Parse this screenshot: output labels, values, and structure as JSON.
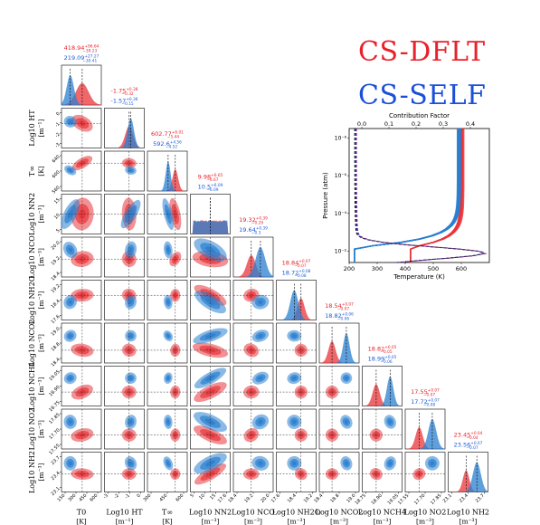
{
  "legend": {
    "red_label": "CS-DFLT",
    "blue_label": "CS-SELF"
  },
  "colors": {
    "red": "#e8343a",
    "blue": "#2a7fd0",
    "red_text": "#e8212a",
    "blue_text": "#1a5ad8"
  },
  "chart_data": [
    {
      "type": "corner",
      "parameters": [
        {
          "label": "T0",
          "unit": "[K]",
          "ticks": [
            "150",
            "300",
            "450",
            "600"
          ],
          "red": {
            "median": "418.94",
            "plus": "+96.64",
            "minus": "−39.23"
          },
          "blue": {
            "median": "219.09",
            "plus": "+27.27",
            "minus": "−30.41"
          }
        },
        {
          "label": "Log10 HT",
          "unit": "[m⁻¹]",
          "ticks": [
            "-3",
            "-2",
            "-1",
            "0"
          ],
          "red": {
            "median": "-1.75",
            "plus": "+0.38",
            "minus": "−0.32"
          },
          "blue": {
            "median": "-1.57",
            "plus": "+0.36",
            "minus": "−0.15"
          }
        },
        {
          "label": "T∞",
          "unit": "[K]",
          "ticks": [
            "300",
            "450",
            "600"
          ],
          "red": {
            "median": "602.77",
            "plus": "+6.01",
            "minus": "−5.44"
          },
          "blue": {
            "median": "592.6",
            "plus": "+4.56",
            "minus": "−4.52"
          }
        },
        {
          "label": "Log10 NN2",
          "unit": "[m⁻³]",
          "ticks": [
            "5",
            "10",
            "15",
            "17.6"
          ],
          "red": {
            "median": "9.98",
            "plus": "+6.65",
            "minus": "−6.67"
          },
          "blue": {
            "median": "10.5",
            "plus": "+6.09",
            "minus": "−6.09"
          }
        },
        {
          "label": "Log10 NCO",
          "unit": "[m⁻³]",
          "ticks": [
            "18.4",
            "19.2",
            "20.0"
          ],
          "red": {
            "median": "19.32",
            "plus": "+0.39",
            "minus": "−0.29"
          },
          "blue": {
            "median": "19.64",
            "plus": "+0.39",
            "minus": "−0.3"
          }
        },
        {
          "label": "Log10 NH2O",
          "unit": "[m⁻³]",
          "ticks": [
            "17.6",
            "18.4",
            "19.2"
          ],
          "red": {
            "median": "18.84",
            "plus": "+0.07",
            "minus": "−0.07"
          },
          "blue": {
            "median": "18.72",
            "plus": "+0.08",
            "minus": "−0.08"
          }
        },
        {
          "label": "Log10 NCO2",
          "unit": "[m⁻³]",
          "ticks": [
            "18.4",
            "18.8",
            "19.0"
          ],
          "red": {
            "median": "18.54",
            "plus": "+0.07",
            "minus": "−0.07"
          },
          "blue": {
            "median": "18.82",
            "plus": "+0.06",
            "minus": "−0.06"
          }
        },
        {
          "label": "Log10 NCH4",
          "unit": "[m⁻³]",
          "ticks": [
            "18.75",
            "18.90",
            "19.05"
          ],
          "red": {
            "median": "18.82",
            "plus": "+0.05",
            "minus": "−0.05"
          },
          "blue": {
            "median": "18.99",
            "plus": "+0.05",
            "minus": "−0.06"
          }
        },
        {
          "label": "Log10 NO2",
          "unit": "[m⁻³]",
          "ticks": [
            "17.55",
            "17.70",
            "17.85"
          ],
          "red": {
            "median": "17.55",
            "plus": "+0.07",
            "minus": "−0.07"
          },
          "blue": {
            "median": "17.72",
            "plus": "+0.07",
            "minus": "−0.08"
          }
        },
        {
          "label": "Log10 NH2",
          "unit": "[m⁻³]",
          "ticks": [
            "23.1",
            "23.4",
            "23.7"
          ],
          "red": {
            "median": "23.45",
            "plus": "+0.04",
            "minus": "−0.04"
          },
          "blue": {
            "median": "23.56",
            "plus": "+0.07",
            "minus": "−0.07"
          }
        }
      ],
      "row_tick_labels": [
        [
          "",
          "",
          ""
        ],
        [
          "0",
          "-1",
          "-2",
          "-3"
        ],
        [
          "640",
          "600",
          "560"
        ],
        [
          "15",
          "10",
          "5"
        ],
        [
          "20.0",
          "19.2",
          "18.4"
        ],
        [
          "19.2",
          "18.4",
          "17.6"
        ],
        [
          "19.0",
          "18.8",
          "18.4"
        ],
        [
          "19.05",
          "18.90",
          "18.75"
        ],
        [
          "17.85",
          "17.70",
          "17.55"
        ],
        [
          "23.7",
          "23.4",
          "23.1"
        ]
      ]
    },
    {
      "type": "line",
      "title": "Contribution Factor",
      "xlabel": "Temperature (K)",
      "ylabel": "Pressure (atm)",
      "xlim": [
        200,
        700
      ],
      "x_ticks": [
        "200",
        "300",
        "400",
        "500",
        "600"
      ],
      "ylim_log10": [
        -8.5,
        -1.4
      ],
      "y_ticks": [
        "10⁻⁸",
        "10⁻⁶",
        "10⁻⁴",
        "10⁻²"
      ],
      "top_ticks": [
        "0.0",
        "0.1",
        "0.2",
        "0.3",
        "0.4"
      ],
      "series": [
        {
          "color": "red",
          "T0": 418.94,
          "Tinf": 602.77
        },
        {
          "color": "blue",
          "T0": 219.09,
          "Tinf": 592.6
        }
      ]
    }
  ]
}
